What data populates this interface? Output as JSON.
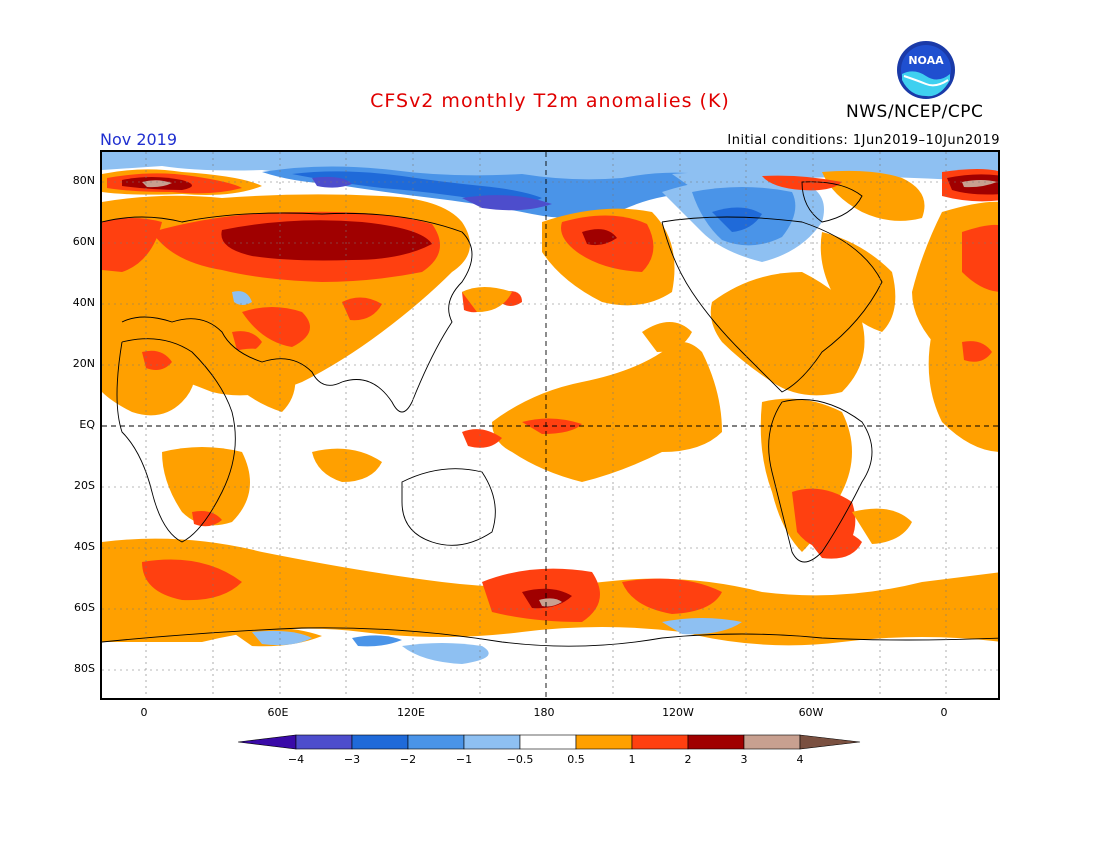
{
  "header": {
    "title": "CFSv2 monthly T2m anomalies (K)",
    "org": "NWS/NCEP/CPC",
    "month": "Nov 2019",
    "initial_conditions": "Initial conditions: 1Jun2019–10Jun2019",
    "logo_text": "NOAA"
  },
  "axes": {
    "lat_labels": [
      "80N",
      "60N",
      "40N",
      "20N",
      "EQ",
      "20S",
      "40S",
      "60S",
      "80S"
    ],
    "lat_values": [
      80,
      60,
      40,
      20,
      0,
      -20,
      -40,
      -60,
      -80
    ],
    "lon_labels": [
      "0",
      "60E",
      "120E",
      "180",
      "120W",
      "60W",
      "0"
    ],
    "lon_values": [
      0,
      60,
      120,
      180,
      240,
      300,
      360
    ],
    "lon_range": [
      -20,
      385
    ],
    "lat_range": [
      -90,
      90
    ]
  },
  "legend": {
    "labels": [
      "−4",
      "−3",
      "−2",
      "−1",
      "−0.5",
      "0.5",
      "1",
      "2",
      "3",
      "4"
    ],
    "colors": [
      "#3a0aa8",
      "#4d4dcc",
      "#1f6ad9",
      "#4a94e8",
      "#8ec0f2",
      "#ffffff",
      "#ffa000",
      "#ff4010",
      "#a00000",
      "#c8a090",
      "#7a5040"
    ],
    "unit": "K"
  },
  "colors": {
    "ocean_land_neutral": "#ffffff",
    "warm_1": "#ffa000",
    "warm_2": "#ff4010",
    "warm_3": "#a00000",
    "warm_4": "#c8a090",
    "cool_1": "#8ec0f2",
    "cool_2": "#4a94e8",
    "cool_3": "#1f6ad9",
    "cool_4": "#4d4dcc",
    "title_color": "#e00000",
    "month_color": "#2030d0"
  }
}
